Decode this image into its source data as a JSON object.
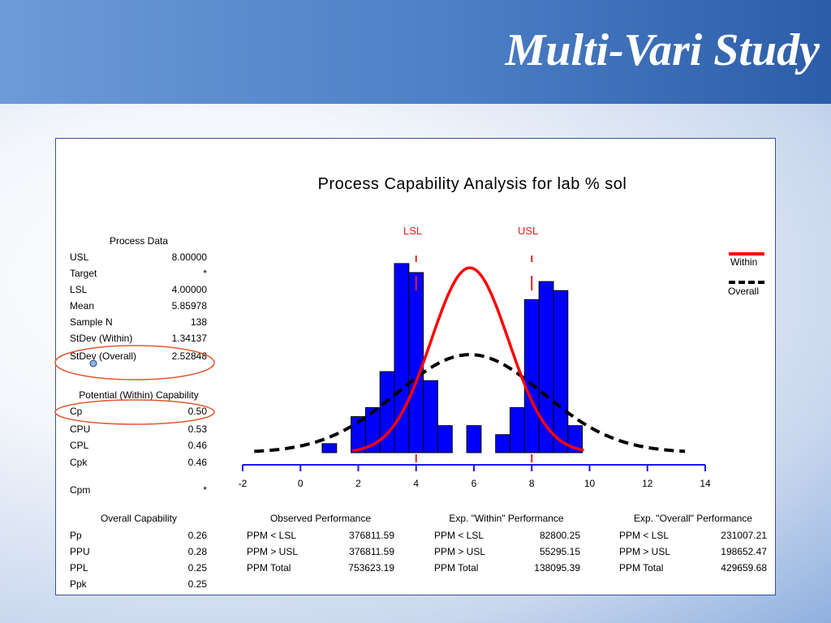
{
  "slide": {
    "title": "Multi-Vari Study"
  },
  "colors": {
    "bars": "#0000ff",
    "within": "#ff0000",
    "overall": "#000000",
    "spec": "#e02020",
    "axis": "#1a1ae6",
    "highlight": "#e05a30"
  },
  "chart_data": {
    "type": "bar",
    "title": "Process Capability Analysis for lab % sol",
    "xlabel": "",
    "ylabel": "",
    "xlim": [
      -2,
      14
    ],
    "xticks": [
      -2,
      0,
      2,
      4,
      6,
      8,
      10,
      12,
      14
    ],
    "bin_width": 0.5,
    "histogram": {
      "bin_starts": [
        0.75,
        1.75,
        2.25,
        2.75,
        3.25,
        3.75,
        4.25,
        4.75,
        5.25,
        5.75,
        6.25,
        6.75,
        7.25,
        7.75,
        8.25,
        8.75,
        9.25
      ],
      "counts": [
        1,
        4,
        5,
        9,
        21,
        20,
        8,
        3,
        0,
        3,
        0,
        2,
        5,
        17,
        19,
        18,
        3
      ]
    },
    "spec_limits": {
      "LSL": 4,
      "USL": 8
    },
    "spec_labels": {
      "LSL": "LSL",
      "USL": "USL"
    },
    "mean": 5.85978,
    "stdev_within": 1.34137,
    "stdev_overall": 2.52848,
    "legend": [
      {
        "name": "Within",
        "style": "solid",
        "color": "#ff0000"
      },
      {
        "name": "Overall",
        "style": "dashed",
        "color": "#000000"
      }
    ],
    "legend_placement": "right"
  },
  "process_data": {
    "heading": "Process Data",
    "rows": [
      {
        "label": "USL",
        "value": "8.00000"
      },
      {
        "label": "Target",
        "value": "*"
      },
      {
        "label": "LSL",
        "value": "4.00000"
      },
      {
        "label": "Mean",
        "value": "5.85978"
      },
      {
        "label": "Sample N",
        "value": "138"
      },
      {
        "label": "StDev (Within)",
        "value": "1.34137"
      },
      {
        "label": "StDev (Overall)",
        "value": "2.52848"
      }
    ]
  },
  "potential_capability": {
    "heading": "Potential (Within) Capability",
    "rows": [
      {
        "label": "Cp",
        "value": "0.50"
      },
      {
        "label": "CPU",
        "value": "0.53"
      },
      {
        "label": "CPL",
        "value": "0.46"
      },
      {
        "label": "Cpk",
        "value": "0.46"
      },
      {
        "label": "Cpm",
        "value": "*"
      }
    ]
  },
  "overall_capability": {
    "heading": "Overall Capability",
    "rows": [
      {
        "label": "Pp",
        "value": "0.26"
      },
      {
        "label": "PPU",
        "value": "0.28"
      },
      {
        "label": "PPL",
        "value": "0.25"
      },
      {
        "label": "Ppk",
        "value": "0.25"
      }
    ]
  },
  "observed_performance": {
    "heading": "Observed Performance",
    "rows": [
      {
        "label": "PPM < LSL",
        "value": "376811.59"
      },
      {
        "label": "PPM > USL",
        "value": "376811.59"
      },
      {
        "label": "PPM Total",
        "value": "753623.19"
      }
    ]
  },
  "within_performance": {
    "heading": "Exp. \"Within\" Performance",
    "rows": [
      {
        "label": "PPM < LSL",
        "value": "82800.25"
      },
      {
        "label": "PPM > USL",
        "value": "55295.15"
      },
      {
        "label": "PPM Total",
        "value": "138095.39"
      }
    ]
  },
  "overall_performance": {
    "heading": "Exp. \"Overall\" Performance",
    "rows": [
      {
        "label": "PPM < LSL",
        "value": "231007.21"
      },
      {
        "label": "PPM > USL",
        "value": "198652.47"
      },
      {
        "label": "PPM Total",
        "value": "429659.68"
      }
    ]
  }
}
